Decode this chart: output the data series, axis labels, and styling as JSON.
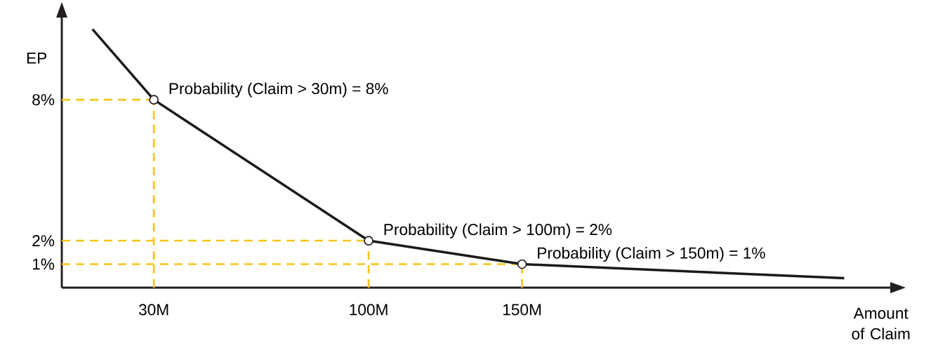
{
  "chart_data": {
    "type": "line",
    "xlabel": "Amount of Claim",
    "ylabel": "EP",
    "xlim": [
      0,
      270
    ],
    "ylim": [
      0,
      11.5
    ],
    "xticks": [
      {
        "value": 30,
        "label": "30M"
      },
      {
        "value": 100,
        "label": "100M"
      },
      {
        "value": 150,
        "label": "150M"
      }
    ],
    "yticks": [
      {
        "value": 1,
        "label": "1%"
      },
      {
        "value": 2,
        "label": "2%"
      },
      {
        "value": 8,
        "label": "8%"
      }
    ],
    "series": [
      {
        "color": "#1a1a1a",
        "x": [
          10,
          30,
          100,
          150,
          255
        ],
        "values": [
          11,
          8,
          2,
          1,
          0.4
        ]
      },
      {
        "type": "scatter",
        "color": "#ffffff",
        "marker": "circle",
        "x": [
          30,
          100,
          150
        ],
        "values": [
          8,
          2,
          1
        ]
      }
    ],
    "ref_lines": [
      {
        "axis": "y",
        "value": 8,
        "color": "#f5c518",
        "line_style": "dashed"
      },
      {
        "axis": "y",
        "value": 2,
        "color": "#f5c518",
        "line_style": "dashed"
      },
      {
        "axis": "y",
        "value": 1,
        "color": "#f5c518",
        "line_style": "dashed"
      },
      {
        "axis": "x",
        "value": 30,
        "color": "#f5c518",
        "line_style": "dashed"
      },
      {
        "axis": "x",
        "value": 100,
        "color": "#f5c518",
        "line_style": "dashed"
      },
      {
        "axis": "x",
        "value": 150,
        "color": "#f5c518",
        "line_style": "dashed"
      }
    ],
    "annotations": [
      {
        "text": "Probability (Claim > 30m) = 8%",
        "x": 30,
        "y": 8
      },
      {
        "text": "Probability (Claim > 100m) = 2%",
        "x": 100,
        "y": 2
      },
      {
        "text": "Probability (Claim > 150m) = 1%",
        "x": 150,
        "y": 1
      }
    ]
  }
}
